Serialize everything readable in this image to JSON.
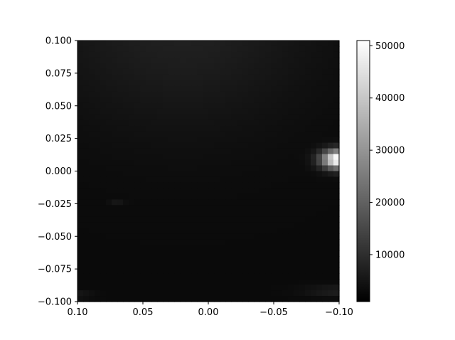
{
  "chart_data": {
    "type": "heatmap",
    "title": "",
    "xlabel": "",
    "ylabel": "",
    "colormap": "gray",
    "x_inverted": true,
    "xlim": [
      0.1,
      -0.1
    ],
    "ylim": [
      -0.1,
      0.1
    ],
    "x_ticks": [
      {
        "value": 0.1,
        "label": "0.10"
      },
      {
        "value": 0.05,
        "label": "0.05"
      },
      {
        "value": 0.0,
        "label": "0.00"
      },
      {
        "value": -0.05,
        "label": "−0.05"
      },
      {
        "value": -0.1,
        "label": "−0.10"
      }
    ],
    "y_ticks": [
      {
        "value": 0.1,
        "label": "0.100"
      },
      {
        "value": 0.075,
        "label": "0.075"
      },
      {
        "value": 0.05,
        "label": "0.050"
      },
      {
        "value": 0.025,
        "label": "0.025"
      },
      {
        "value": 0.0,
        "label": "0.000"
      },
      {
        "value": -0.025,
        "label": "−0.025"
      },
      {
        "value": -0.05,
        "label": "−0.050"
      },
      {
        "value": -0.075,
        "label": "−0.075"
      },
      {
        "value": -0.1,
        "label": "−0.100"
      }
    ],
    "colorbar": {
      "range": [
        1000,
        51000
      ],
      "ticks": [
        {
          "value": 10000,
          "label": "10000"
        },
        {
          "value": 20000,
          "label": "20000"
        },
        {
          "value": 30000,
          "label": "30000"
        },
        {
          "value": 40000,
          "label": "40000"
        },
        {
          "value": 50000,
          "label": "50000"
        }
      ]
    },
    "background_level": 3000,
    "features": [
      {
        "x": -0.1,
        "y": 0.009,
        "peak": 51000,
        "sigma_x": 0.009,
        "sigma_y": 0.005
      },
      {
        "x": 0.02,
        "y": 0.12,
        "peak": 4500,
        "sigma_x": 0.07,
        "sigma_y": 0.06
      },
      {
        "x": 0.07,
        "y": -0.025,
        "peak": 3500,
        "sigma_x": 0.004,
        "sigma_y": 0.0012
      },
      {
        "x": -0.1,
        "y": -0.092,
        "peak": 4000,
        "sigma_x": 0.018,
        "sigma_y": 0.003
      },
      {
        "x": 0.1,
        "y": -0.095,
        "peak": 3000,
        "sigma_x": 0.008,
        "sigma_y": 0.002
      }
    ]
  }
}
